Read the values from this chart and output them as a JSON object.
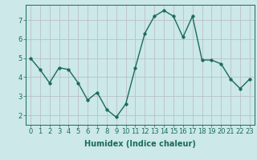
{
  "x": [
    0,
    1,
    2,
    3,
    4,
    5,
    6,
    7,
    8,
    9,
    10,
    11,
    12,
    13,
    14,
    15,
    16,
    17,
    18,
    19,
    20,
    21,
    22,
    23
  ],
  "y": [
    5.0,
    4.4,
    3.7,
    4.5,
    4.4,
    3.7,
    2.8,
    3.2,
    2.3,
    1.9,
    2.6,
    4.5,
    6.3,
    7.2,
    7.5,
    7.2,
    6.1,
    7.2,
    4.9,
    4.9,
    4.7,
    3.9,
    3.4,
    3.9
  ],
  "line_color": "#1a6b5a",
  "marker_color": "#1a6b5a",
  "bg_color": "#cce8e8",
  "grid_color": "#b8b8c8",
  "xlabel": "Humidex (Indice chaleur)",
  "xlim": [
    -0.5,
    23.5
  ],
  "ylim": [
    1.5,
    7.8
  ],
  "yticks": [
    2,
    3,
    4,
    5,
    6,
    7
  ],
  "xticks": [
    0,
    1,
    2,
    3,
    4,
    5,
    6,
    7,
    8,
    9,
    10,
    11,
    12,
    13,
    14,
    15,
    16,
    17,
    18,
    19,
    20,
    21,
    22,
    23
  ],
  "xlabel_fontsize": 7,
  "tick_fontsize": 6,
  "marker_size": 2.5,
  "line_width": 1.0
}
